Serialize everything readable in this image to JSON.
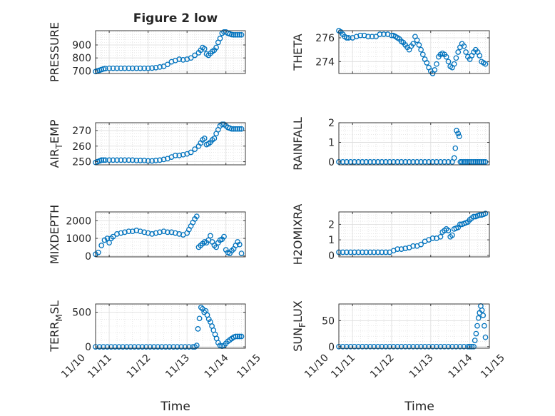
{
  "figure": {
    "title": "Figure 2 low",
    "xlabel": "Time"
  },
  "colors": {
    "marker": "#0072BD",
    "axis": "#262626",
    "grid": "#e6e6e6",
    "background": "#ffffff"
  },
  "chart_data": [
    {
      "id": "pressure",
      "type": "scatter",
      "ylabel": "PRESSURE",
      "xlim": [
        10.65,
        14.5
      ],
      "ylim": [
        680,
        1010
      ],
      "yticks": [
        700,
        800,
        900
      ],
      "ytick_labels": [
        "700",
        "800",
        "900"
      ],
      "xticks": [
        11,
        12,
        13,
        14
      ],
      "xtick_labels": [],
      "x": [
        10.65,
        10.7,
        10.75,
        10.8,
        10.85,
        10.9,
        11.0,
        11.1,
        11.2,
        11.3,
        11.4,
        11.5,
        11.6,
        11.7,
        11.8,
        11.9,
        12.0,
        12.1,
        12.2,
        12.3,
        12.4,
        12.5,
        12.6,
        12.7,
        12.8,
        12.9,
        13.0,
        13.1,
        13.2,
        13.3,
        13.35,
        13.4,
        13.45,
        13.5,
        13.55,
        13.6,
        13.65,
        13.7,
        13.75,
        13.8,
        13.85,
        13.9,
        13.95,
        14.0,
        14.05,
        14.1,
        14.15,
        14.2,
        14.25,
        14.3,
        14.35,
        14.4
      ],
      "y": [
        695,
        700,
        705,
        710,
        715,
        718,
        720,
        720,
        720,
        720,
        720,
        720,
        720,
        720,
        720,
        720,
        720,
        722,
        725,
        730,
        735,
        750,
        770,
        780,
        790,
        785,
        790,
        800,
        820,
        840,
        860,
        880,
        870,
        830,
        820,
        835,
        850,
        860,
        880,
        920,
        950,
        990,
        1000,
        1000,
        990,
        985,
        980,
        978,
        978,
        978,
        978,
        978
      ]
    },
    {
      "id": "theta",
      "type": "scatter",
      "ylabel": "THETA",
      "xlim": [
        10.65,
        14.5
      ],
      "ylim": [
        273,
        276.6
      ],
      "yticks": [
        274,
        276
      ],
      "ytick_labels": [
        "274",
        "276"
      ],
      "xticks": [
        11,
        12,
        13,
        14
      ],
      "xtick_labels": [],
      "x": [
        10.65,
        10.7,
        10.75,
        10.8,
        10.85,
        10.9,
        11.0,
        11.1,
        11.2,
        11.3,
        11.4,
        11.5,
        11.6,
        11.7,
        11.8,
        11.9,
        12.0,
        12.05,
        12.1,
        12.15,
        12.2,
        12.25,
        12.3,
        12.35,
        12.4,
        12.45,
        12.5,
        12.55,
        12.6,
        12.65,
        12.7,
        12.75,
        12.8,
        12.85,
        12.9,
        12.95,
        13.0,
        13.05,
        13.1,
        13.15,
        13.2,
        13.25,
        13.3,
        13.35,
        13.4,
        13.45,
        13.5,
        13.55,
        13.6,
        13.65,
        13.7,
        13.75,
        13.8,
        13.85,
        13.9,
        13.95,
        14.0,
        14.05,
        14.1,
        14.15,
        14.2,
        14.25,
        14.3,
        14.35,
        14.4
      ],
      "y": [
        276.6,
        276.5,
        276.3,
        276.1,
        276.0,
        276.0,
        276.0,
        276.1,
        276.2,
        276.2,
        276.1,
        276.1,
        276.1,
        276.3,
        276.3,
        276.3,
        276.2,
        276.2,
        276.1,
        276.0,
        275.9,
        275.7,
        275.6,
        275.4,
        275.2,
        275.0,
        275.3,
        275.5,
        276.1,
        275.8,
        275.4,
        275.0,
        274.6,
        274.2,
        273.9,
        273.5,
        273.2,
        273.0,
        273.3,
        273.8,
        274.4,
        274.6,
        274.7,
        274.6,
        274.4,
        274.0,
        273.6,
        273.5,
        273.8,
        274.3,
        274.8,
        275.2,
        275.5,
        275.3,
        274.8,
        274.4,
        274.2,
        274.5,
        274.8,
        275.0,
        274.8,
        274.5,
        274.0,
        273.9,
        273.8
      ]
    },
    {
      "id": "air_temp",
      "type": "scatter",
      "ylabel": "AIR_TEMP",
      "ylabel_sub": "T",
      "ylabel_pre": "AIR",
      "ylabel_post": "EMP",
      "xlim": [
        10.65,
        14.5
      ],
      "ylim": [
        248,
        275
      ],
      "yticks": [
        250,
        260,
        270
      ],
      "ytick_labels": [
        "250",
        "260",
        "270"
      ],
      "xticks": [
        11,
        12,
        13,
        14
      ],
      "xtick_labels": [],
      "x": [
        10.65,
        10.7,
        10.75,
        10.8,
        10.85,
        10.9,
        11.0,
        11.1,
        11.2,
        11.3,
        11.4,
        11.5,
        11.6,
        11.7,
        11.8,
        11.9,
        12.0,
        12.1,
        12.2,
        12.3,
        12.4,
        12.5,
        12.6,
        12.7,
        12.8,
        12.9,
        13.0,
        13.1,
        13.2,
        13.3,
        13.35,
        13.4,
        13.45,
        13.5,
        13.55,
        13.6,
        13.65,
        13.7,
        13.75,
        13.8,
        13.85,
        13.9,
        13.95,
        14.0,
        14.05,
        14.1,
        14.15,
        14.2,
        14.25,
        14.3,
        14.35,
        14.4
      ],
      "y": [
        249.5,
        250,
        250.5,
        251,
        251,
        251,
        251,
        251,
        251,
        251,
        251,
        251,
        251,
        250.8,
        250.8,
        250.8,
        250.5,
        250.5,
        250.8,
        251,
        251.5,
        252,
        253,
        254,
        254,
        254.5,
        255,
        256,
        258,
        260,
        262,
        264,
        265,
        261,
        261.5,
        262.5,
        264,
        265,
        268,
        270.5,
        273,
        274,
        274,
        273,
        272,
        271.5,
        271,
        271,
        271,
        271,
        271,
        271
      ]
    },
    {
      "id": "rainfall",
      "type": "scatter",
      "ylabel": "RAINFALL",
      "xlim": [
        10.65,
        14.5
      ],
      "ylim": [
        -0.15,
        2
      ],
      "yticks": [
        0,
        1,
        2
      ],
      "ytick_labels": [
        "0",
        "1",
        "2"
      ],
      "xticks": [
        11,
        12,
        13,
        14
      ],
      "xtick_labels": [],
      "x": [
        10.65,
        10.75,
        10.85,
        10.95,
        11.05,
        11.15,
        11.25,
        11.35,
        11.45,
        11.55,
        11.65,
        11.75,
        11.85,
        11.95,
        12.05,
        12.15,
        12.25,
        12.35,
        12.45,
        12.55,
        12.65,
        12.75,
        12.85,
        12.95,
        13.05,
        13.15,
        13.25,
        13.35,
        13.45,
        13.55,
        13.6,
        13.63,
        13.66,
        13.7,
        13.73,
        13.76,
        13.8,
        13.85,
        13.9,
        13.95,
        14.0,
        14.05,
        14.1,
        14.15,
        14.2,
        14.25,
        14.3,
        14.35,
        14.4
      ],
      "y": [
        0,
        0,
        0,
        0,
        0,
        0,
        0,
        0,
        0,
        0,
        0,
        0,
        0,
        0,
        0,
        0,
        0,
        0,
        0,
        0,
        0,
        0,
        0,
        0,
        0,
        0,
        0,
        0,
        0,
        0,
        0.2,
        0.7,
        1.6,
        1.45,
        1.3,
        0,
        0,
        0,
        0,
        0,
        0,
        0,
        0,
        0,
        0,
        0,
        0,
        0,
        0
      ]
    },
    {
      "id": "mixdepth",
      "type": "scatter",
      "ylabel": "MIXDEPTH",
      "xlim": [
        10.65,
        14.5
      ],
      "ylim": [
        -50,
        2500
      ],
      "yticks": [
        0,
        1000,
        2000
      ],
      "ytick_labels": [
        "0",
        "1000",
        "2000"
      ],
      "xticks": [
        11,
        12,
        13,
        14
      ],
      "xtick_labels": [],
      "x": [
        10.65,
        10.72,
        10.8,
        10.88,
        10.95,
        11.0,
        11.05,
        11.1,
        11.2,
        11.3,
        11.4,
        11.5,
        11.6,
        11.7,
        11.8,
        11.9,
        12.0,
        12.1,
        12.2,
        12.3,
        12.4,
        12.5,
        12.6,
        12.7,
        12.8,
        12.9,
        13.0,
        13.05,
        13.1,
        13.15,
        13.2,
        13.25,
        13.3,
        13.35,
        13.4,
        13.45,
        13.5,
        13.55,
        13.6,
        13.65,
        13.7,
        13.75,
        13.8,
        13.85,
        13.9,
        13.95,
        14.0,
        14.05,
        14.1,
        14.15,
        14.2,
        14.25,
        14.3,
        14.35,
        14.4
      ],
      "y": [
        100,
        200,
        600,
        900,
        1000,
        750,
        1000,
        1100,
        1250,
        1300,
        1350,
        1400,
        1400,
        1450,
        1400,
        1350,
        1300,
        1250,
        1300,
        1350,
        1400,
        1350,
        1350,
        1300,
        1250,
        1200,
        1300,
        1500,
        1700,
        1900,
        2100,
        2250,
        500,
        600,
        700,
        800,
        750,
        900,
        1150,
        800,
        600,
        500,
        750,
        900,
        950,
        1100,
        350,
        200,
        150,
        300,
        400,
        600,
        800,
        650,
        150
      ]
    },
    {
      "id": "h2omixra",
      "type": "scatter",
      "ylabel": "H2OMIXRA",
      "xlim": [
        10.65,
        14.5
      ],
      "ylim": [
        -0.1,
        2.8
      ],
      "yticks": [
        0,
        1,
        2
      ],
      "ytick_labels": [
        "0",
        "1",
        "2"
      ],
      "xticks": [
        11,
        12,
        13,
        14
      ],
      "xtick_labels": [],
      "x": [
        10.65,
        10.75,
        10.85,
        10.95,
        11.05,
        11.15,
        11.25,
        11.35,
        11.45,
        11.55,
        11.65,
        11.75,
        11.85,
        11.95,
        12.05,
        12.15,
        12.25,
        12.35,
        12.45,
        12.55,
        12.65,
        12.75,
        12.85,
        12.95,
        13.05,
        13.15,
        13.25,
        13.3,
        13.35,
        13.4,
        13.45,
        13.5,
        13.55,
        13.6,
        13.65,
        13.7,
        13.75,
        13.8,
        13.85,
        13.9,
        13.95,
        14.0,
        14.05,
        14.1,
        14.15,
        14.2,
        14.25,
        14.3,
        14.35,
        14.4
      ],
      "y": [
        0.2,
        0.2,
        0.2,
        0.2,
        0.2,
        0.2,
        0.2,
        0.2,
        0.2,
        0.2,
        0.2,
        0.2,
        0.2,
        0.2,
        0.3,
        0.4,
        0.4,
        0.45,
        0.5,
        0.6,
        0.6,
        0.7,
        0.9,
        1.0,
        1.1,
        1.1,
        1.2,
        1.5,
        1.6,
        1.7,
        1.6,
        1.2,
        1.3,
        1.7,
        1.75,
        1.8,
        2.0,
        2.0,
        2.05,
        2.1,
        2.15,
        2.3,
        2.4,
        2.5,
        2.5,
        2.55,
        2.6,
        2.6,
        2.65,
        2.7
      ]
    },
    {
      "id": "terr_msl",
      "type": "scatter",
      "ylabel": "TERR_MSL",
      "ylabel_sub": "M",
      "ylabel_pre": "TERR",
      "ylabel_post": "SL",
      "xlim": [
        10.65,
        14.5
      ],
      "ylim": [
        -20,
        620
      ],
      "yticks": [
        0,
        500
      ],
      "ytick_labels": [
        "0",
        "500"
      ],
      "xticks": [
        11,
        12,
        13,
        14
      ],
      "xtick_labels": [
        "11/11",
        "11/12",
        "11/13",
        "11/14"
      ],
      "x": [
        10.65,
        10.75,
        10.85,
        10.95,
        11.05,
        11.15,
        11.25,
        11.35,
        11.45,
        11.55,
        11.65,
        11.75,
        11.85,
        11.95,
        12.05,
        12.15,
        12.25,
        12.35,
        12.45,
        12.55,
        12.65,
        12.75,
        12.85,
        12.95,
        13.05,
        13.15,
        13.2,
        13.25,
        13.28,
        13.32,
        13.36,
        13.4,
        13.44,
        13.48,
        13.52,
        13.56,
        13.6,
        13.64,
        13.68,
        13.72,
        13.76,
        13.8,
        13.85,
        13.9,
        13.95,
        14.0,
        14.05,
        14.1,
        14.15,
        14.2,
        14.25,
        14.3,
        14.35,
        14.4
      ],
      "y": [
        0,
        0,
        0,
        0,
        0,
        0,
        0,
        0,
        0,
        0,
        0,
        0,
        0,
        0,
        0,
        0,
        0,
        0,
        0,
        0,
        0,
        0,
        0,
        0,
        0,
        0,
        0,
        20,
        260,
        410,
        570,
        550,
        500,
        520,
        460,
        400,
        360,
        300,
        240,
        180,
        120,
        60,
        20,
        10,
        20,
        50,
        80,
        100,
        120,
        140,
        150,
        150,
        150,
        150
      ]
    },
    {
      "id": "sun_flux",
      "type": "scatter",
      "ylabel": "SUN_FLUX",
      "ylabel_sub": "F",
      "ylabel_pre": "SUN",
      "ylabel_post": "LUX",
      "xlim": [
        10.65,
        14.5
      ],
      "ylim": [
        -3,
        82
      ],
      "yticks": [
        0,
        50
      ],
      "ytick_labels": [
        "0",
        "50"
      ],
      "xticks": [
        11,
        12,
        13,
        14
      ],
      "xtick_labels": [
        "11/11",
        "11/12",
        "11/13",
        "11/14"
      ],
      "x": [
        10.65,
        10.75,
        10.85,
        10.95,
        11.05,
        11.15,
        11.25,
        11.35,
        11.45,
        11.55,
        11.65,
        11.75,
        11.85,
        11.95,
        12.05,
        12.15,
        12.25,
        12.35,
        12.45,
        12.55,
        12.65,
        12.75,
        12.85,
        12.95,
        13.05,
        13.15,
        13.25,
        13.35,
        13.45,
        13.55,
        13.65,
        13.75,
        13.85,
        13.95,
        14.0,
        14.05,
        14.1,
        14.13,
        14.16,
        14.19,
        14.22,
        14.25,
        14.28,
        14.31,
        14.34,
        14.37,
        14.4
      ],
      "y": [
        0,
        0,
        0,
        0,
        0,
        0,
        0,
        0,
        0,
        0,
        0,
        0,
        0,
        0,
        0,
        0,
        0,
        0,
        0,
        0,
        0,
        0,
        0,
        0,
        0,
        0,
        0,
        0,
        0,
        0,
        0,
        0,
        0,
        0,
        0,
        0,
        0,
        12,
        25,
        40,
        55,
        65,
        78,
        70,
        60,
        40,
        18
      ]
    }
  ],
  "x_edge_labels": {
    "left": "11/10",
    "right": "11/15"
  }
}
